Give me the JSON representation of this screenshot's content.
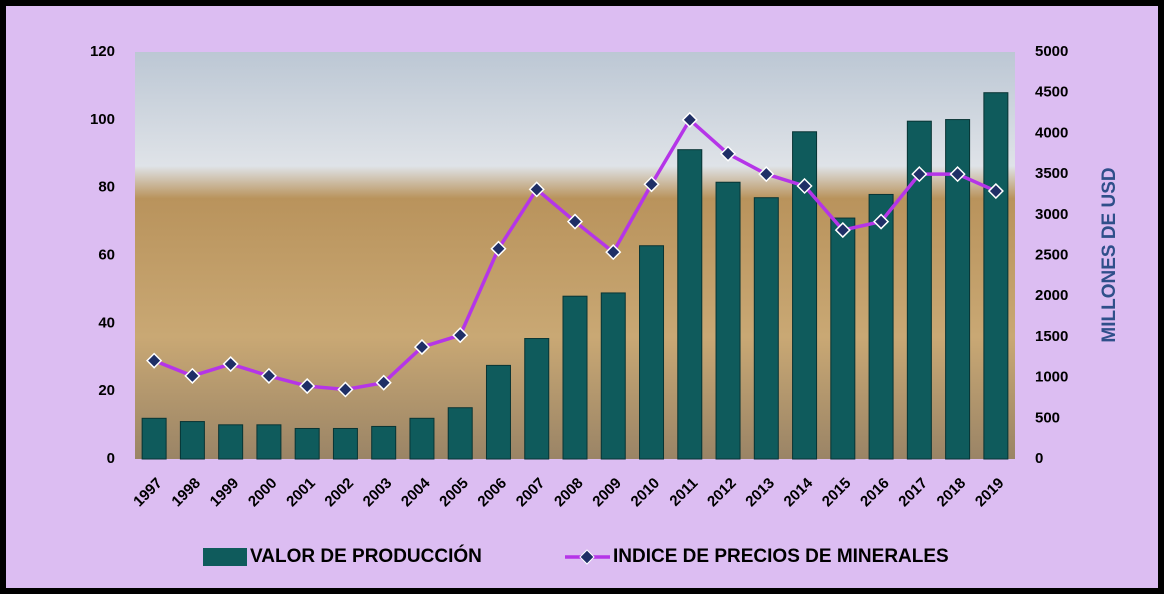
{
  "chart_data": {
    "type": "bar_line",
    "categories": [
      "1997",
      "1998",
      "1999",
      "2000",
      "2001",
      "2002",
      "2003",
      "2004",
      "2005",
      "2006",
      "2007",
      "2008",
      "2009",
      "2010",
      "2011",
      "2012",
      "2013",
      "2014",
      "2015",
      "2016",
      "2017",
      "2018",
      "2019"
    ],
    "series": [
      {
        "name": "VALOR DE PRODUCCIÓN",
        "type": "bar",
        "axis": "y2",
        "color": "#0f5b5c",
        "values": [
          500,
          460,
          420,
          420,
          375,
          375,
          400,
          500,
          630,
          1150,
          1480,
          2000,
          2040,
          2620,
          3800,
          3400,
          3210,
          4020,
          2960,
          3250,
          4150,
          4170,
          4500
        ]
      },
      {
        "name": "INDICE DE PRECIOS DE MINERALES",
        "type": "line",
        "axis": "y",
        "color": "#b535e8",
        "marker_color": "#1f2f66",
        "values": [
          29,
          24.5,
          28,
          24.5,
          21.5,
          20.5,
          22.5,
          33,
          36.5,
          62,
          79.5,
          70,
          61,
          81,
          100,
          90,
          84,
          80.5,
          67.5,
          70,
          84,
          84,
          79
        ]
      }
    ],
    "ylim": [
      0,
      120
    ],
    "yticks": [
      0,
      20,
      40,
      60,
      80,
      100,
      120
    ],
    "y2lim": [
      0,
      5000
    ],
    "y2ticks": [
      0,
      500,
      1000,
      1500,
      2000,
      2500,
      3000,
      3500,
      4000,
      4500,
      5000
    ],
    "y2_label": "MILLONES DE USD",
    "legend": "bottom"
  }
}
